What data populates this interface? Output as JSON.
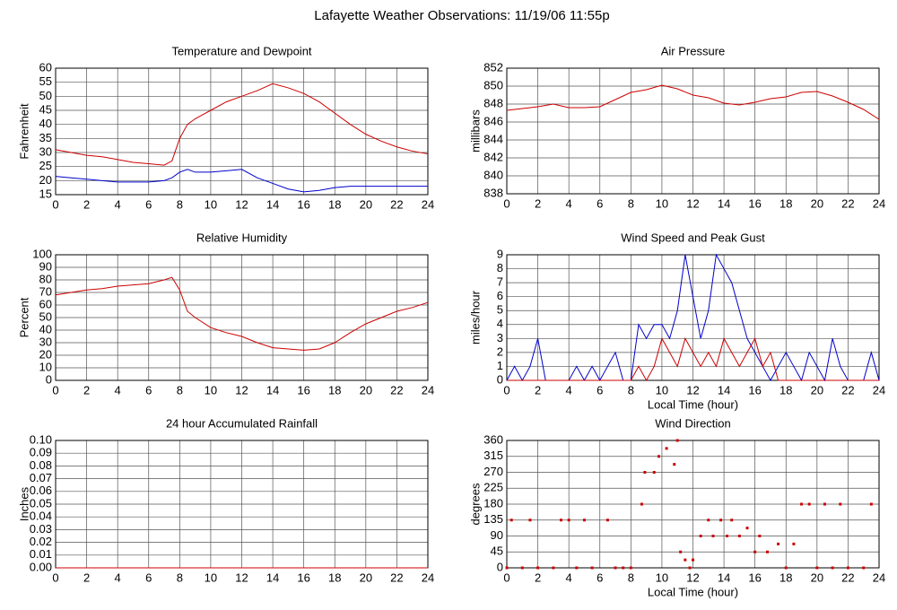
{
  "title": "Lafayette Weather Observations: 11/19/06 11:55p",
  "chart_data": [
    {
      "type": "line",
      "title": "Temperature and Dewpoint",
      "y_label": "Fahrenheit",
      "x": [
        0,
        1,
        2,
        3,
        4,
        5,
        6,
        7,
        7.5,
        8,
        8.5,
        9,
        10,
        11,
        12,
        13,
        14,
        15,
        16,
        17,
        18,
        19,
        20,
        21,
        22,
        23,
        24
      ],
      "series": [
        {
          "color": "#cc0000",
          "values": [
            31,
            30,
            29,
            28.5,
            27.5,
            26.5,
            26,
            25.5,
            27,
            35,
            40,
            42,
            45,
            48,
            50,
            52,
            54.5,
            53,
            51,
            48,
            44,
            40,
            36.5,
            34,
            32,
            30.5,
            29.5
          ]
        },
        {
          "color": "#0000cc",
          "values": [
            21.5,
            21,
            20.5,
            20,
            19.5,
            19.5,
            19.5,
            20,
            21,
            23,
            24,
            23,
            23,
            23.5,
            24,
            21,
            19,
            17,
            16,
            16.5,
            17.5,
            18,
            18,
            18,
            18,
            18,
            18
          ]
        }
      ],
      "xlim": [
        0,
        24
      ],
      "xticks": [
        0,
        2,
        4,
        6,
        8,
        10,
        12,
        14,
        16,
        18,
        20,
        22,
        24
      ],
      "ylim": [
        15,
        60
      ],
      "yticks": [
        15,
        20,
        25,
        30,
        35,
        40,
        45,
        50,
        55,
        60
      ],
      "grid": true
    },
    {
      "type": "line",
      "title": "Air Pressure",
      "y_label": "millibars",
      "x": [
        0,
        1,
        2,
        3,
        4,
        5,
        6,
        7,
        8,
        9,
        10,
        11,
        12,
        13,
        14,
        15,
        16,
        17,
        18,
        19,
        20,
        21,
        22,
        23,
        24
      ],
      "series": [
        {
          "color": "#cc0000",
          "values": [
            847.3,
            847.5,
            847.7,
            848,
            847.6,
            847.6,
            847.7,
            848.5,
            849.3,
            849.6,
            850.1,
            849.7,
            849,
            848.7,
            848.1,
            847.9,
            848.2,
            848.6,
            848.8,
            849.3,
            849.4,
            848.9,
            848.2,
            847.4,
            846.3
          ]
        }
      ],
      "xlim": [
        0,
        24
      ],
      "xticks": [
        0,
        2,
        4,
        6,
        8,
        10,
        12,
        14,
        16,
        18,
        20,
        22,
        24
      ],
      "ylim": [
        838,
        852
      ],
      "yticks": [
        838,
        840,
        842,
        844,
        846,
        848,
        850,
        852
      ],
      "grid": true
    },
    {
      "type": "line",
      "title": "Relative Humidity",
      "y_label": "Percent",
      "x": [
        0,
        1,
        2,
        3,
        4,
        5,
        6,
        7,
        7.5,
        8,
        8.5,
        9,
        10,
        11,
        12,
        13,
        14,
        15,
        16,
        17,
        18,
        19,
        20,
        21,
        22,
        23,
        24
      ],
      "series": [
        {
          "color": "#cc0000",
          "values": [
            68,
            70,
            72,
            73,
            75,
            76,
            77,
            80,
            82,
            72,
            55,
            50,
            42,
            38,
            35,
            30,
            26,
            25,
            24,
            25,
            30,
            38,
            45,
            50,
            55,
            58,
            62
          ]
        }
      ],
      "xlim": [
        0,
        24
      ],
      "xticks": [
        0,
        2,
        4,
        6,
        8,
        10,
        12,
        14,
        16,
        18,
        20,
        22,
        24
      ],
      "ylim": [
        0,
        100
      ],
      "yticks": [
        0,
        10,
        20,
        30,
        40,
        50,
        60,
        70,
        80,
        90,
        100
      ],
      "grid": true
    },
    {
      "type": "line",
      "title": "Wind Speed and Peak Gust",
      "y_label": "miles/hour",
      "x_label": "Local Time (hour)",
      "x": [
        0,
        0.5,
        1,
        1.5,
        2,
        2.5,
        3,
        3.5,
        4,
        4.5,
        5,
        5.5,
        6,
        6.5,
        7,
        7.5,
        8,
        8.5,
        9,
        9.5,
        10,
        10.5,
        11,
        11.5,
        12,
        12.5,
        13,
        13.5,
        14,
        14.5,
        15,
        15.5,
        16,
        16.5,
        17,
        17.5,
        18,
        18.5,
        19,
        19.5,
        20,
        20.5,
        21,
        21.5,
        22,
        22.5,
        23,
        23.5,
        24
      ],
      "series": [
        {
          "color": "#0000cc",
          "values": [
            0,
            1,
            0,
            1,
            3,
            0,
            0,
            0,
            0,
            1,
            0,
            1,
            0,
            1,
            2,
            0,
            0,
            4,
            3,
            4,
            4,
            3,
            5,
            9,
            6,
            3,
            5,
            9,
            8,
            7,
            5,
            3,
            2,
            1,
            0,
            1,
            2,
            1,
            0,
            2,
            1,
            0,
            3,
            1,
            0,
            0,
            0,
            2,
            0
          ]
        },
        {
          "color": "#cc0000",
          "values": [
            0,
            0,
            0,
            0,
            0,
            0,
            0,
            0,
            0,
            0,
            0,
            0,
            0,
            0,
            0,
            0,
            0,
            1,
            0,
            1,
            3,
            2,
            1,
            3,
            2,
            1,
            2,
            1,
            3,
            2,
            1,
            2,
            3,
            1,
            2,
            0,
            0,
            0,
            0,
            0,
            0,
            0,
            0,
            0,
            0,
            0,
            0,
            0,
            0
          ]
        }
      ],
      "xlim": [
        0,
        24
      ],
      "xticks": [
        0,
        2,
        4,
        6,
        8,
        10,
        12,
        14,
        16,
        18,
        20,
        22,
        24
      ],
      "ylim": [
        0,
        9
      ],
      "yticks": [
        0,
        1,
        2,
        3,
        4,
        5,
        6,
        7,
        8,
        9
      ],
      "grid": true
    },
    {
      "type": "line",
      "title": "24 hour Accumulated Rainfall",
      "y_label": "Inches",
      "x": [
        0,
        24
      ],
      "series": [
        {
          "color": "#cc0000",
          "values": [
            0,
            0
          ]
        }
      ],
      "xlim": [
        0,
        24
      ],
      "xticks": [
        0,
        2,
        4,
        6,
        8,
        10,
        12,
        14,
        16,
        18,
        20,
        22,
        24
      ],
      "ylim": [
        0,
        0.1
      ],
      "yticks": [
        {
          "value": 0,
          "label": "0.00"
        },
        0.01,
        0.02,
        0.03,
        0.04,
        0.05,
        0.06,
        0.07,
        0.08,
        0.09,
        {
          "value": 0.1,
          "label": "0.10"
        }
      ],
      "grid": true
    },
    {
      "type": "scatter",
      "title": "Wind Direction",
      "y_label": "degrees",
      "x_label": "Local Time (hour)",
      "color": "#cc0000",
      "x": [
        0,
        0.3,
        1,
        1.5,
        2,
        3,
        3.5,
        4,
        4.5,
        5,
        5.5,
        6.5,
        7,
        7.5,
        8,
        8.7,
        8.9,
        9.5,
        9.8,
        10.3,
        10.8,
        11,
        11.2,
        11.5,
        11.8,
        12,
        12.5,
        13,
        13.3,
        13.8,
        14.2,
        14.5,
        15,
        15.5,
        16,
        16.3,
        16.8,
        17.5,
        18,
        18.5,
        19,
        19.5,
        20,
        20.5,
        21,
        21.5,
        22,
        23,
        23.5
      ],
      "values": [
        0,
        135,
        0,
        135,
        0,
        0,
        135,
        135,
        0,
        135,
        0,
        135,
        0,
        0,
        0,
        180,
        270,
        270,
        315,
        337.5,
        292.5,
        360,
        45,
        22.5,
        0,
        22.5,
        90,
        135,
        90,
        135,
        90,
        135,
        90,
        112.5,
        45,
        90,
        45,
        67.5,
        0,
        67.5,
        180,
        180,
        0,
        180,
        0,
        180,
        0,
        0,
        180
      ],
      "xlim": [
        0,
        24
      ],
      "xticks": [
        0,
        2,
        4,
        6,
        8,
        10,
        12,
        14,
        16,
        18,
        20,
        22,
        24
      ],
      "ylim": [
        0,
        360
      ],
      "yticks": [
        0,
        45,
        90,
        135,
        180,
        225,
        270,
        315,
        360
      ],
      "grid": true
    }
  ]
}
